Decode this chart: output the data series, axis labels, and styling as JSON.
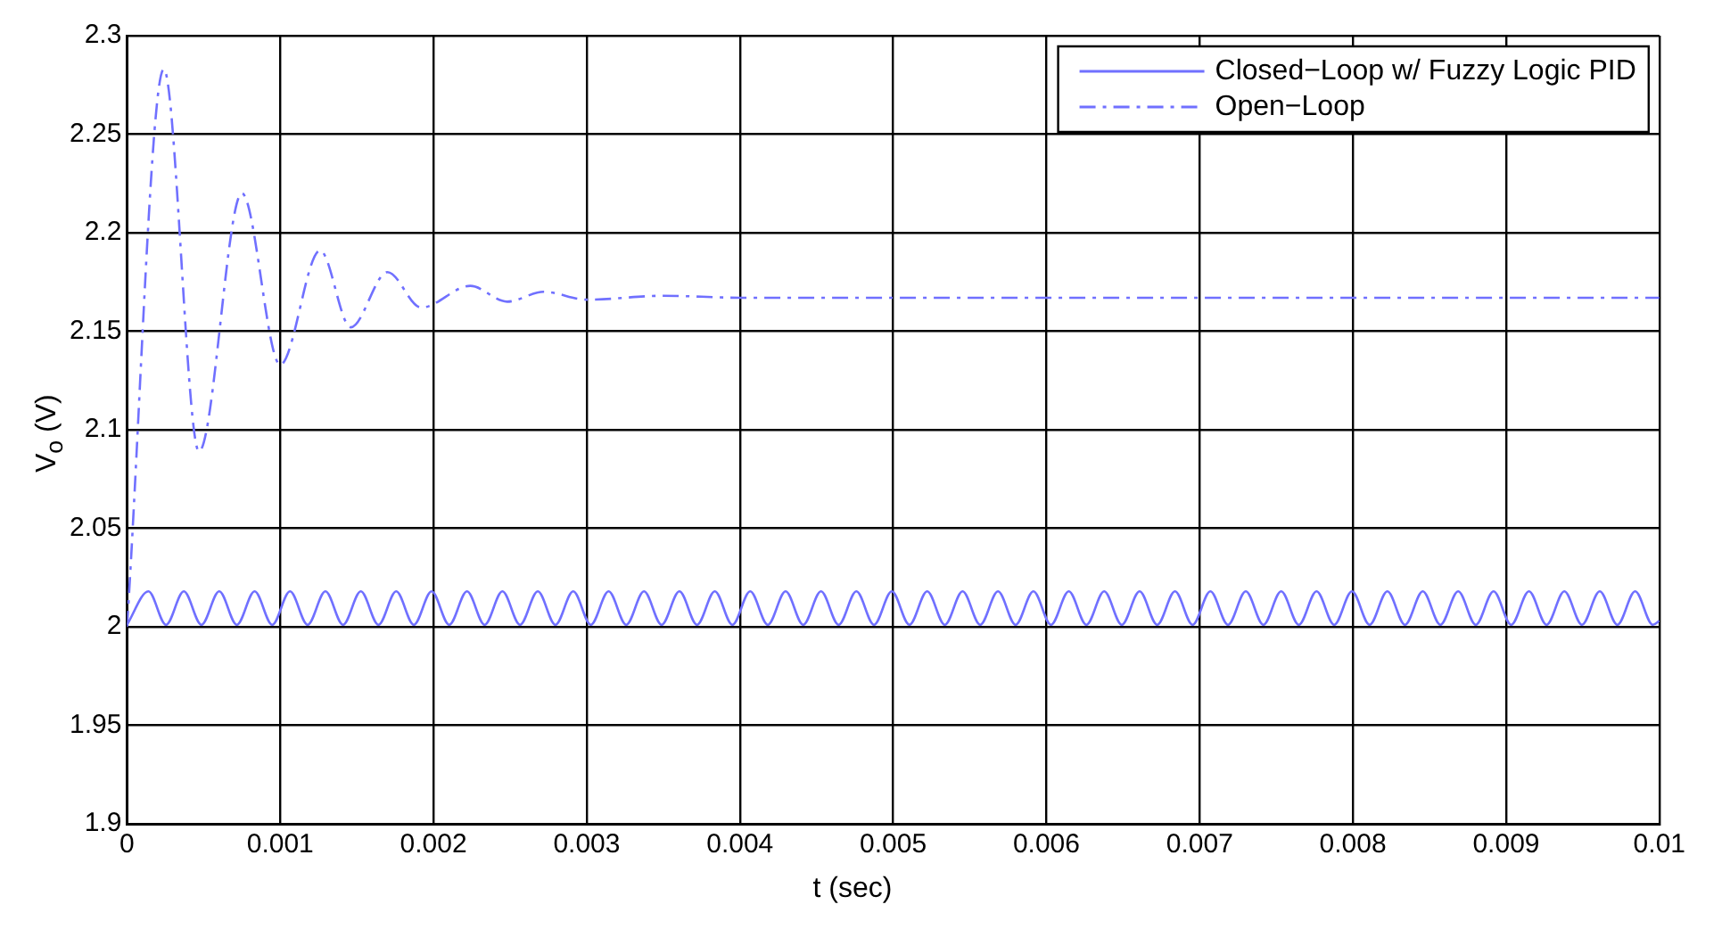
{
  "chart_data": {
    "type": "line",
    "xlabel": "t (sec)",
    "ylabel": "V$_{o}$ (V)",
    "xlim": [
      0,
      0.01
    ],
    "xticks": [
      0,
      0.001,
      0.002,
      0.003,
      0.004,
      0.005,
      0.006,
      0.007,
      0.008,
      0.009,
      0.01
    ],
    "ylim": [
      1.9,
      2.3
    ],
    "yticks": [
      1.9,
      1.95,
      2,
      2.05,
      2.1,
      2.15,
      2.2,
      2.25,
      2.3
    ],
    "grid": true,
    "legend": "top right",
    "marker": "none",
    "series": [
      {
        "name": "Closed−Loop w/ Fuzzy Logic PID",
        "color": "#7070ff",
        "line_style": "solid",
        "x": [
          0,
          0.00014,
          0.000255,
          0.000371,
          0.000486,
          0.000602,
          0.000717,
          0.000833,
          0.000948,
          0.001064,
          0.001179,
          0.001295,
          0.00141,
          0.001526,
          0.001641,
          0.001757,
          0.001872,
          0.001988,
          0.002103,
          0.002219,
          0.002334,
          0.00245,
          0.002565,
          0.002681,
          0.002796,
          0.002912,
          0.003027,
          0.003143,
          0.003258,
          0.003374,
          0.003489,
          0.003605,
          0.00372,
          0.003836,
          0.003951,
          0.004067,
          0.004182,
          0.004298,
          0.004413,
          0.004529,
          0.004644,
          0.00476,
          0.004875,
          0.004991,
          0.005106,
          0.005222,
          0.005337,
          0.005453,
          0.005568,
          0.005684,
          0.005799,
          0.005915,
          0.00603,
          0.006146,
          0.006261,
          0.006377,
          0.006492,
          0.006608,
          0.006723,
          0.006839,
          0.006954,
          0.00707,
          0.007185,
          0.007301,
          0.007416,
          0.007532,
          0.007647,
          0.007763,
          0.007878,
          0.007994,
          0.008109,
          0.008225,
          0.00834,
          0.008456,
          0.008571,
          0.008687,
          0.008802,
          0.008918,
          0.009033,
          0.009149,
          0.009264,
          0.00938,
          0.009495,
          0.009611,
          0.009726,
          0.009842,
          0.009957,
          0.01
        ],
        "values": [
          2.001,
          2.018,
          2.001,
          2.018,
          2.001,
          2.018,
          2.001,
          2.018,
          2.001,
          2.018,
          2.001,
          2.018,
          2.001,
          2.018,
          2.001,
          2.018,
          2.001,
          2.018,
          2.001,
          2.018,
          2.001,
          2.018,
          2.001,
          2.018,
          2.001,
          2.018,
          2.001,
          2.018,
          2.001,
          2.018,
          2.001,
          2.018,
          2.001,
          2.018,
          2.001,
          2.018,
          2.001,
          2.018,
          2.001,
          2.018,
          2.001,
          2.018,
          2.001,
          2.018,
          2.001,
          2.018,
          2.001,
          2.018,
          2.001,
          2.018,
          2.001,
          2.018,
          2.001,
          2.018,
          2.001,
          2.018,
          2.001,
          2.018,
          2.001,
          2.018,
          2.001,
          2.018,
          2.001,
          2.018,
          2.001,
          2.018,
          2.001,
          2.018,
          2.001,
          2.018,
          2.001,
          2.018,
          2.001,
          2.018,
          2.001,
          2.018,
          2.001,
          2.018,
          2.001,
          2.018,
          2.001,
          2.018,
          2.001,
          2.018,
          2.001,
          2.018,
          2.001,
          2.003
        ]
      },
      {
        "name": "Open−Loop",
        "color": "#7070ff",
        "line_style": "dashdot",
        "x": [
          0,
          0.00024,
          0.00047,
          0.00075,
          0.001,
          0.00126,
          0.00146,
          0.0017,
          0.00192,
          0.00224,
          0.00248,
          0.00272,
          0.003,
          0.0035,
          0.004,
          0.01
        ],
        "values": [
          2.0,
          2.283,
          2.089,
          2.22,
          2.133,
          2.191,
          2.152,
          2.18,
          2.162,
          2.173,
          2.165,
          2.17,
          2.166,
          2.168,
          2.167,
          2.167
        ]
      }
    ]
  }
}
